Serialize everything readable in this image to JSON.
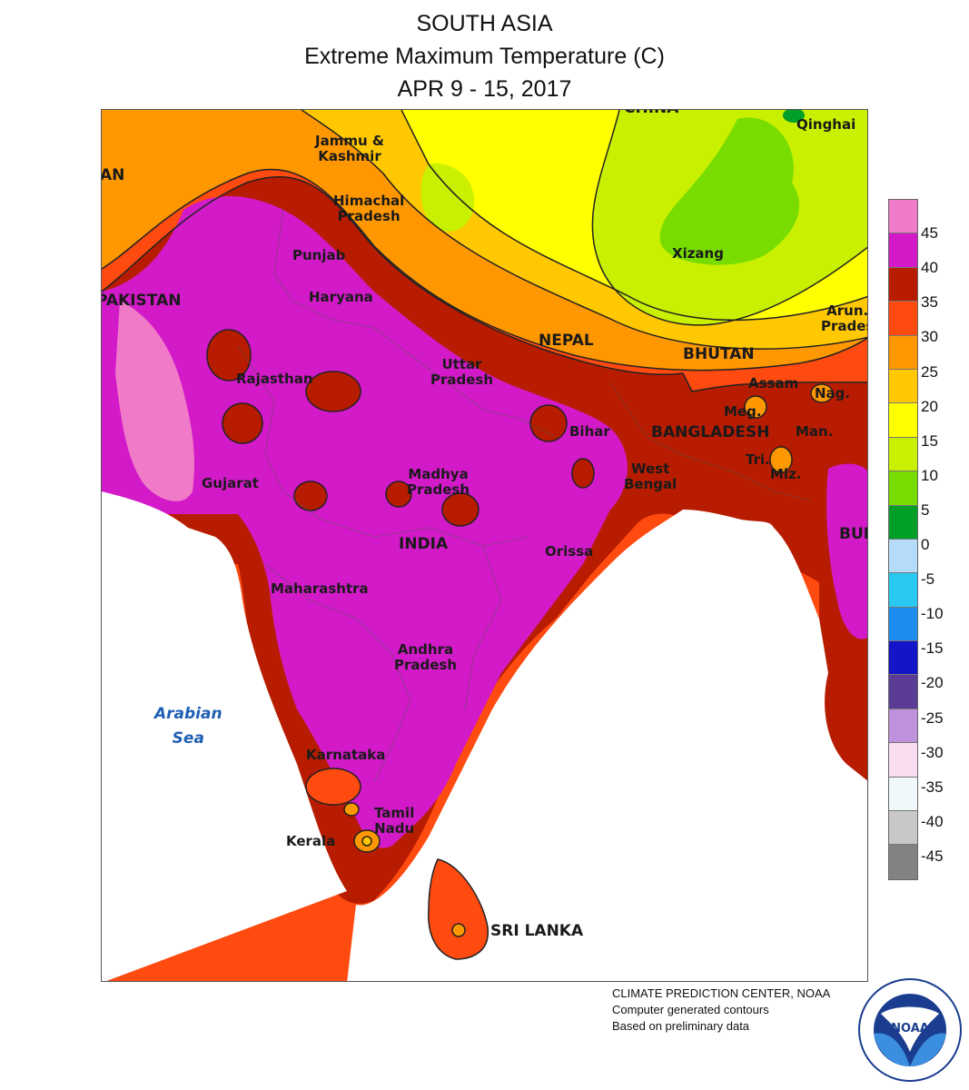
{
  "title": {
    "line1": "SOUTH ASIA",
    "line2": "Extreme Maximum Temperature (C)",
    "line3": "APR 9 - 15, 2017"
  },
  "map": {
    "countries": {
      "china": "CHINA",
      "pakistan": "PAKISTAN",
      "afghanistan": "AN",
      "nepal": "NEPAL",
      "bhutan": "BHUTAN",
      "bangladesh": "BANGLADESH",
      "india": "INDIA",
      "sri_lanka": "SRI LANKA",
      "burma": "BUR"
    },
    "regions": {
      "jammu_kashmir": "Jammu &\nKashmir",
      "qinghai": "Qinghai",
      "himachal": "Himachal\nPradesh",
      "xizang": "Xizang",
      "punjab": "Punjab",
      "haryana": "Haryana",
      "arunachal": "Arun.\nPrades",
      "rajasthan": "Rajasthan",
      "uttar_pradesh": "Uttar\nPradesh",
      "assam": "Assam",
      "nagaland": "Nag.",
      "meghalaya": "Meg.",
      "bihar": "Bihar",
      "manipur": "Man.",
      "gujarat": "Gujarat",
      "madhya_pradesh": "Madhya\nPradesh",
      "west_bengal": "West\nBengal",
      "tripura": "Tri.",
      "mizoram": "Miz.",
      "orissa": "Orissa",
      "maharashtra": "Maharashtra",
      "andhra_pradesh": "Andhra\nPradesh",
      "karnataka": "Karnataka",
      "tamil_nadu": "Tamil\nNadu",
      "kerala": "Kerala"
    },
    "sea": "Arabian\nSea"
  },
  "legend": {
    "bins": [
      {
        "color": "#f07ac8"
      },
      {
        "color": "#d21ac8"
      },
      {
        "color": "#b81c00"
      },
      {
        "color": "#ff4a10"
      },
      {
        "color": "#ff9800"
      },
      {
        "color": "#ffc800"
      },
      {
        "color": "#ffff00"
      },
      {
        "color": "#c8f000"
      },
      {
        "color": "#78dc00"
      },
      {
        "color": "#00a028"
      },
      {
        "color": "#b4dcf8"
      },
      {
        "color": "#28c8f0"
      },
      {
        "color": "#1e8cf0"
      },
      {
        "color": "#1414c8"
      },
      {
        "color": "#5a3c96"
      },
      {
        "color": "#be91dc"
      },
      {
        "color": "#f8dcf0"
      },
      {
        "color": "#f0f8fc"
      },
      {
        "color": "#c8c8c8"
      },
      {
        "color": "#828282"
      }
    ],
    "ticks": [
      "45",
      "40",
      "35",
      "30",
      "25",
      "20",
      "15",
      "10",
      "5",
      "0",
      "-5",
      "-10",
      "-15",
      "-20",
      "-25",
      "-30",
      "-35",
      "-40",
      "-45"
    ]
  },
  "credits": {
    "line1": "CLIMATE PREDICTION CENTER, NOAA",
    "line2": "Computer generated contours",
    "line3": "Based on preliminary data"
  },
  "logo": {
    "text": "NOAA",
    "ring_text": "NATIONAL OCEANIC AND ATMOSPHERIC ADMINISTRATION · U.S. DEPARTMENT OF COMMERCE"
  }
}
